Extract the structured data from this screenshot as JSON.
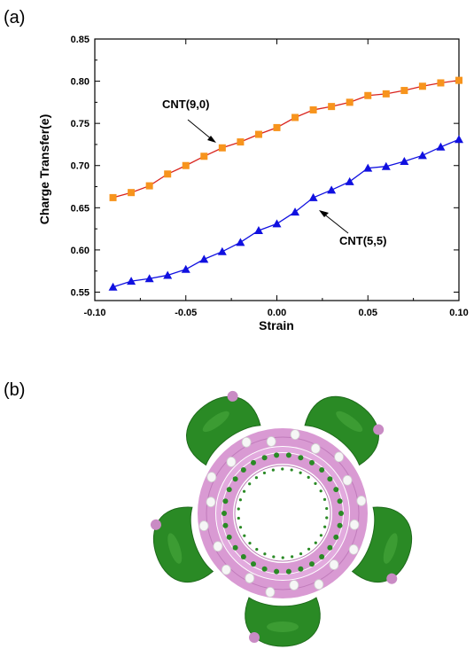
{
  "panels": {
    "a_label": "(a)",
    "b_label": "(b)"
  },
  "chart_data": {
    "type": "line",
    "title": "",
    "xlabel": "Strain",
    "ylabel": "Charge Transfer(e)",
    "xlim": [
      -0.1,
      0.1
    ],
    "ylim": [
      0.54,
      0.85
    ],
    "xticks": [
      -0.1,
      -0.05,
      0.0,
      0.05,
      0.1
    ],
    "xtick_labels": [
      "-0.10",
      "-0.05",
      "0.00",
      "0.05",
      "0.10"
    ],
    "yticks": [
      0.55,
      0.6,
      0.65,
      0.7,
      0.75,
      0.8,
      0.85
    ],
    "ytick_labels": [
      "0.55",
      "0.60",
      "0.65",
      "0.70",
      "0.75",
      "0.80",
      "0.85"
    ],
    "grid": false,
    "legend": "none",
    "x": [
      -0.09,
      -0.08,
      -0.07,
      -0.06,
      -0.05,
      -0.04,
      -0.03,
      -0.02,
      -0.01,
      0.0,
      0.01,
      0.02,
      0.03,
      0.04,
      0.05,
      0.06,
      0.07,
      0.08,
      0.09,
      0.1
    ],
    "series": [
      {
        "name": "CNT(9,0)",
        "marker": "square",
        "marker_color": "#f7941d",
        "line_color": "#d9231d",
        "values": [
          0.662,
          0.668,
          0.676,
          0.69,
          0.7,
          0.711,
          0.721,
          0.728,
          0.737,
          0.745,
          0.757,
          0.766,
          0.77,
          0.775,
          0.783,
          0.785,
          0.789,
          0.794,
          0.798,
          0.801
        ]
      },
      {
        "name": "CNT(5,5)",
        "marker": "triangle",
        "marker_color": "#1010e0",
        "line_color": "#1010e0",
        "values": [
          0.556,
          0.563,
          0.566,
          0.57,
          0.577,
          0.589,
          0.598,
          0.609,
          0.623,
          0.631,
          0.645,
          0.662,
          0.671,
          0.681,
          0.697,
          0.699,
          0.705,
          0.712,
          0.722,
          0.731
        ]
      }
    ],
    "annotations": [
      {
        "text": "CNT(9,0)",
        "series": "CNT(9,0)"
      },
      {
        "text": "CNT(5,5)",
        "series": "CNT(5,5)"
      }
    ]
  },
  "figure_b": {
    "description_colors": {
      "lobe": "#2a8a25",
      "ring": "#d99ad3",
      "atom": "#f4f4f4"
    },
    "lobe_count": 5
  }
}
